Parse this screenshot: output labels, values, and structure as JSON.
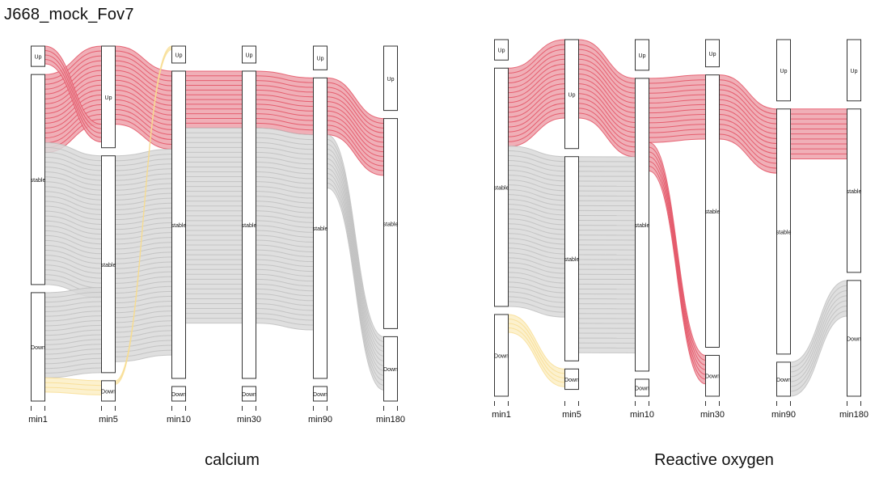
{
  "page": {
    "title": "J668_mock_Fov7"
  },
  "colors": {
    "red_flow": "#e24a5d",
    "red_fill": "#eda1aa",
    "grey_flow": "#bdbdbd",
    "grey_fill": "#d9d9d9",
    "yellow_flow": "#f8dc8e",
    "yellow_fill": "#fcefc6",
    "box_stroke": "#333333"
  },
  "chart_data": [
    {
      "type": "alluvial",
      "title": "calcium",
      "axes": [
        "min1",
        "min5",
        "min10",
        "min30",
        "min90",
        "min180"
      ],
      "categories": [
        "Up",
        "stable",
        "Down"
      ],
      "stratum_proportions": {
        "min1": {
          "Up": 0.06,
          "stable": 0.62,
          "Down": 0.32
        },
        "min5": {
          "Up": 0.3,
          "stable": 0.64,
          "Down": 0.06
        },
        "min10": {
          "Up": 0.05,
          "stable": 0.91,
          "Down": 0.04
        },
        "min30": {
          "Up": 0.05,
          "stable": 0.91,
          "Down": 0.04
        },
        "min90": {
          "Up": 0.07,
          "stable": 0.89,
          "Down": 0.04
        },
        "min180": {
          "Up": 0.19,
          "stable": 0.62,
          "Down": 0.19
        }
      },
      "flows": [
        {
          "from": "min1:stable",
          "to": "min5:Up",
          "color": "red",
          "weight": 0.22
        },
        {
          "from": "min1:Up",
          "to": "min5:Up",
          "color": "red",
          "weight": 0.05
        },
        {
          "from": "min1:stable",
          "to": "min5:stable",
          "color": "grey",
          "weight": 0.4
        },
        {
          "from": "min1:Down",
          "to": "min5:stable",
          "color": "grey",
          "weight": 0.24
        },
        {
          "from": "min1:Down",
          "to": "min5:Down",
          "color": "yellow",
          "weight": 0.04
        },
        {
          "from": "min5:Up",
          "to": "min10:stable",
          "color": "red",
          "weight": 0.22
        },
        {
          "from": "min5:stable",
          "to": "min10:stable",
          "color": "grey",
          "weight": 0.58
        },
        {
          "from": "min5:Down",
          "to": "min10:Up",
          "color": "yellow",
          "weight": 0.01
        },
        {
          "from": "min10:stable",
          "to": "min30:stable",
          "color": "red",
          "weight": 0.16
        },
        {
          "from": "min10:stable",
          "to": "min30:stable",
          "color": "grey",
          "weight": 0.55
        },
        {
          "from": "min30:stable",
          "to": "min90:stable",
          "color": "red",
          "weight": 0.16
        },
        {
          "from": "min30:stable",
          "to": "min90:stable",
          "color": "grey",
          "weight": 0.55
        },
        {
          "from": "min90:stable",
          "to": "min180:stable",
          "color": "red",
          "weight": 0.16
        },
        {
          "from": "min90:stable",
          "to": "min180:Down",
          "color": "grey",
          "weight": 0.15
        }
      ]
    },
    {
      "type": "alluvial",
      "title": "Reactive oxygen",
      "axes": [
        "min1",
        "min5",
        "min10",
        "min30",
        "min90",
        "min180"
      ],
      "categories": [
        "Up",
        "stable",
        "Down"
      ],
      "stratum_proportions": {
        "min1": {
          "Up": 0.06,
          "stable": 0.7,
          "Down": 0.24
        },
        "min5": {
          "Up": 0.32,
          "stable": 0.6,
          "Down": 0.06
        },
        "min10": {
          "Up": 0.09,
          "stable": 0.86,
          "Down": 0.05
        },
        "min30": {
          "Up": 0.08,
          "stable": 0.8,
          "Down": 0.12
        },
        "min90": {
          "Up": 0.18,
          "stable": 0.72,
          "Down": 0.1
        },
        "min180": {
          "Up": 0.18,
          "stable": 0.48,
          "Down": 0.34
        }
      },
      "flows": [
        {
          "from": "min1:stable",
          "to": "min5:Up",
          "color": "red",
          "weight": 0.22
        },
        {
          "from": "min1:stable",
          "to": "min5:stable",
          "color": "grey",
          "weight": 0.45
        },
        {
          "from": "min1:Down",
          "to": "min5:Down",
          "color": "yellow",
          "weight": 0.05
        },
        {
          "from": "min5:Up",
          "to": "min10:stable",
          "color": "red",
          "weight": 0.22
        },
        {
          "from": "min5:stable",
          "to": "min10:stable",
          "color": "grey",
          "weight": 0.55
        },
        {
          "from": "min10:stable",
          "to": "min30:stable",
          "color": "red",
          "weight": 0.18
        },
        {
          "from": "min10:stable",
          "to": "min30:Down",
          "color": "red",
          "weight": 0.08
        },
        {
          "from": "min30:stable",
          "to": "min90:stable",
          "color": "red",
          "weight": 0.18
        },
        {
          "from": "min90:stable",
          "to": "min180:stable",
          "color": "red",
          "weight": 0.14
        },
        {
          "from": "min90:Down",
          "to": "min180:Down",
          "color": "grey",
          "weight": 0.1
        }
      ]
    }
  ]
}
